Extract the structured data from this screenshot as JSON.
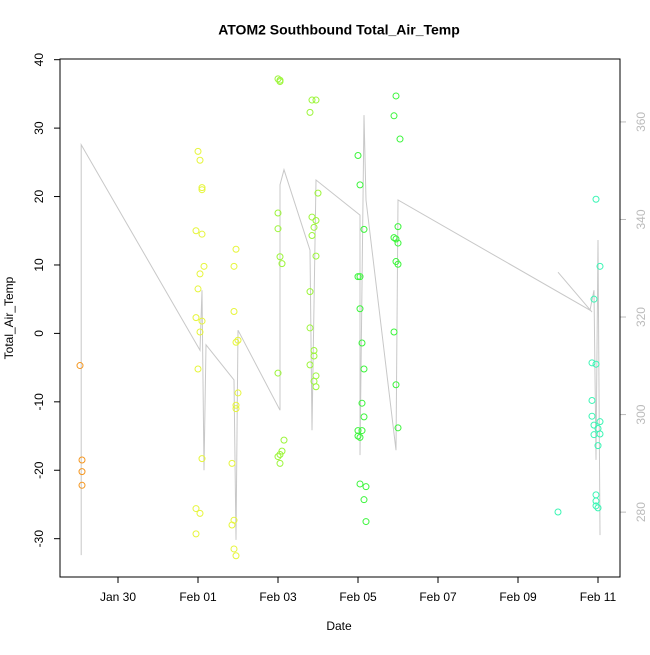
{
  "chart_data": {
    "type": "scatter",
    "title": "ATOM2 Southbound Total_Air_Temp",
    "xlabel": "Date",
    "ylabel": "Total_Air_Temp",
    "xlim": [
      28.55,
      42.55
    ],
    "xticks": [
      {
        "value": 30,
        "label": "Jan 30"
      },
      {
        "value": 32,
        "label": "Feb 01"
      },
      {
        "value": 34,
        "label": "Feb 03"
      },
      {
        "value": 36,
        "label": "Feb 05"
      },
      {
        "value": 38,
        "label": "Feb 07"
      },
      {
        "value": 40,
        "label": "Feb 09"
      },
      {
        "value": 42,
        "label": "Feb 11"
      }
    ],
    "ylim": [
      -35.6,
      40.1
    ],
    "yticks": [
      -30,
      -20,
      -10,
      0,
      10,
      20,
      30,
      40
    ],
    "y2lim": [
      266.7,
      372.9
    ],
    "y2ticks": [
      280,
      300,
      320,
      340,
      360
    ],
    "y2color": "#bbbbbb",
    "series": [
      {
        "type": "line",
        "axis": "y2",
        "color": "#c8c8c8",
        "x": [
          29.08,
          29.08,
          32.05,
          32.1,
          32.15,
          32.2,
          32.9,
          32.95,
          33.0,
          34.05,
          34.05,
          34.15,
          34.8,
          34.85,
          34.95,
          36.05,
          36.05,
          36.15,
          36.2,
          36.95,
          37.0,
          41.8,
          41.9,
          41.95,
          42.0,
          42.05,
          null,
          41.0,
          41.85
        ],
        "values": [
          271.2,
          355.3,
          313.2,
          325.5,
          288.6,
          314.3,
          307.1,
          274.3,
          317.3,
          300.9,
          347.1,
          350.2,
          333.7,
          296.8,
          348.1,
          340.9,
          291.7,
          361.4,
          344.0,
          292.7,
          344.0,
          321.4,
          325.5,
          290.7,
          335.8,
          275.3,
          null,
          329.2,
          321.0
        ]
      },
      {
        "type": "scatter",
        "color": "#f5961e",
        "x": [
          29.05,
          29.1,
          29.1,
          29.1
        ],
        "values": [
          -4.7,
          -18.5,
          -20.2,
          -22.2
        ]
      },
      {
        "type": "scatter",
        "color": "#e6f53a",
        "x": [
          32.0,
          32.05,
          32.1,
          32.1,
          31.95,
          32.1,
          32.15,
          32.05,
          32.0,
          31.95,
          32.1,
          32.05,
          32.0,
          32.1,
          31.95,
          32.05,
          31.95,
          32.95,
          32.9,
          32.9,
          32.95,
          33.0,
          33.0,
          32.95,
          32.95,
          32.85,
          32.9,
          32.85,
          32.9,
          32.95
        ],
        "values": [
          26.6,
          25.3,
          21.3,
          21,
          15,
          14.5,
          9.8,
          8.7,
          6.5,
          2.3,
          1.8,
          0.2,
          -5.2,
          -18.3,
          -25.6,
          -26.3,
          -29.3,
          12.3,
          9.8,
          3.2,
          -1.3,
          -1,
          -8.7,
          -10.5,
          -11,
          -19,
          -27.3,
          -28,
          -31.5,
          -32.5
        ]
      },
      {
        "type": "scatter",
        "color": "#9cf53a",
        "x": [
          34.0,
          34.05,
          34.05,
          34.0,
          34.0,
          34.05,
          34.1,
          34.0,
          34.15,
          34.1,
          34.05,
          34.0,
          34.05,
          34.85,
          34.95,
          34.8,
          35.0,
          34.85,
          34.95,
          34.9,
          34.85,
          34.95,
          34.8,
          34.8,
          34.9,
          34.9,
          34.8,
          34.95,
          34.9,
          34.95
        ],
        "values": [
          37.2,
          37,
          36.8,
          17.6,
          15.3,
          11.2,
          10.2,
          -5.8,
          -15.6,
          -17.2,
          -17.7,
          -18,
          -19,
          34.1,
          34.1,
          32.3,
          20.5,
          17,
          16.5,
          15.5,
          14.3,
          11.3,
          6.1,
          0.8,
          -2.5,
          -3.3,
          -4.6,
          -6.2,
          -7,
          -7.8
        ]
      },
      {
        "type": "scatter",
        "color": "#3af53a",
        "x": [
          36.0,
          36.05,
          36.15,
          36.0,
          36.05,
          36.05,
          36.1,
          36.15,
          36.1,
          36.15,
          36.0,
          36.1,
          36.0,
          36.05,
          36.05,
          36.2,
          36.15,
          36.2,
          36.95,
          36.9,
          37.05,
          37.0,
          36.9,
          36.95,
          37.0,
          36.95,
          37.0,
          36.9,
          36.95,
          37.0
        ],
        "values": [
          26,
          21.7,
          15.2,
          8.3,
          8.3,
          3.6,
          -1.4,
          -5.2,
          -10.2,
          -12.2,
          -14.2,
          -14.2,
          -15,
          -15.2,
          -22,
          -22.4,
          -24.3,
          -27.5,
          34.7,
          31.8,
          28.4,
          15.6,
          14,
          13.8,
          13.2,
          10.5,
          10.1,
          0.2,
          -7.5,
          -13.8
        ]
      },
      {
        "type": "scatter",
        "color": "#3af5b4",
        "x": [
          41.0,
          41.95,
          42.05,
          41.9,
          41.85,
          41.95,
          41.85,
          41.85,
          42.05,
          41.9,
          42.0,
          41.9,
          42.05,
          42.0,
          41.95,
          41.95,
          41.95,
          42.0
        ],
        "values": [
          -26.1,
          19.6,
          9.8,
          5,
          -4.3,
          -4.5,
          -9.8,
          -12.1,
          -12.9,
          -13.4,
          -13.9,
          -14.8,
          -14.7,
          -16.4,
          -23.6,
          -24.5,
          -25.2,
          -25.5
        ]
      }
    ]
  }
}
